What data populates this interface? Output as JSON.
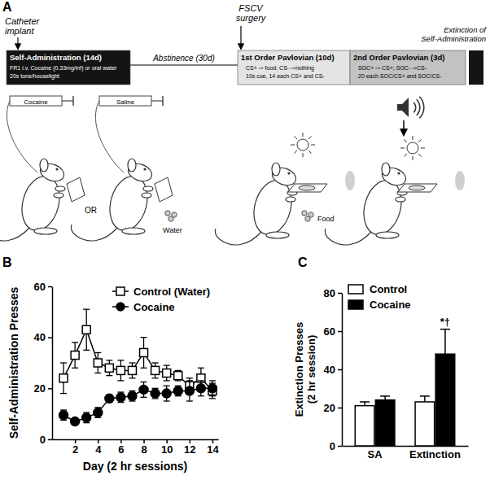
{
  "diagram": {
    "panel": "A",
    "events": [
      "Catheter implant",
      "FSCV surgery",
      "Extinction of Self-Administration"
    ],
    "phases": [
      {
        "title": "Self-Administration (14d)",
        "details": [
          "FR1 i.v. Cocaine (0.33mg/inf) or oral water",
          "20s tone/houselight"
        ]
      },
      {
        "title": "Abstinence (30d)"
      },
      {
        "title": "1st Order Pavlovian (10d)",
        "details": [
          "CS+ ⇨ food; CS- ⇨nothing",
          "10s cue, 14 each CS+ and CS-"
        ]
      },
      {
        "title": "2nd Order Pavlovian (3d)",
        "details": [
          "SOC+ ⇨ CS+; SOC- ⇨CS-",
          "20 each SOC/CS+ and SOC/CS-"
        ]
      }
    ],
    "labels": {
      "cocaine": "Cocaine",
      "saline": "Saline",
      "or": "OR",
      "water": "Water",
      "food": "Food"
    }
  },
  "chart_data": [
    {
      "panel": "B",
      "type": "line",
      "x_label": "Day (2 hr sessions)",
      "y_label": "Self-Administration Presses",
      "x": [
        1,
        2,
        3,
        4,
        5,
        6,
        7,
        8,
        9,
        10,
        11,
        12,
        13,
        14
      ],
      "xlim": [
        0,
        14.5
      ],
      "xticks": [
        2,
        4,
        6,
        8,
        10,
        12,
        14
      ],
      "ylim": [
        0,
        60
      ],
      "yticks": [
        0,
        20,
        40,
        60
      ],
      "legend": "upper right",
      "series": [
        {
          "name": "Control (Water)",
          "color": "#ffffff",
          "marker": "square",
          "values": [
            24,
            33,
            43,
            30,
            28,
            27,
            27,
            34,
            27,
            26,
            25,
            21,
            24,
            19
          ],
          "errors": [
            6,
            5,
            8,
            4,
            3,
            4,
            3,
            6,
            3,
            3,
            2,
            3,
            4,
            3
          ]
        },
        {
          "name": "Cocaine",
          "color": "#000000",
          "marker": "circle",
          "values": [
            9.5,
            7,
            8.5,
            10.5,
            16,
            16.5,
            17,
            19.5,
            18,
            18,
            19,
            19,
            20,
            20
          ],
          "errors": [
            2,
            1,
            2,
            2,
            1.5,
            2,
            2,
            3,
            2,
            3,
            2,
            4,
            3,
            3
          ]
        }
      ]
    },
    {
      "panel": "C",
      "type": "bar",
      "y_label": "Extinction Presses (2 hr session)",
      "categories": [
        "SA",
        "Extinction"
      ],
      "ylim": [
        0,
        80
      ],
      "yticks": [
        0,
        20,
        40,
        60,
        80
      ],
      "legend": "upper left",
      "series": [
        {
          "name": "Control",
          "color": "#ffffff",
          "values": [
            21,
            23
          ],
          "errors": [
            2,
            3
          ]
        },
        {
          "name": "Cocaine",
          "color": "#000000",
          "values": [
            24,
            48
          ],
          "errors": [
            2,
            13
          ]
        }
      ],
      "annotations": [
        {
          "text": "*†",
          "category": "Extinction",
          "series": "Cocaine"
        }
      ]
    }
  ]
}
